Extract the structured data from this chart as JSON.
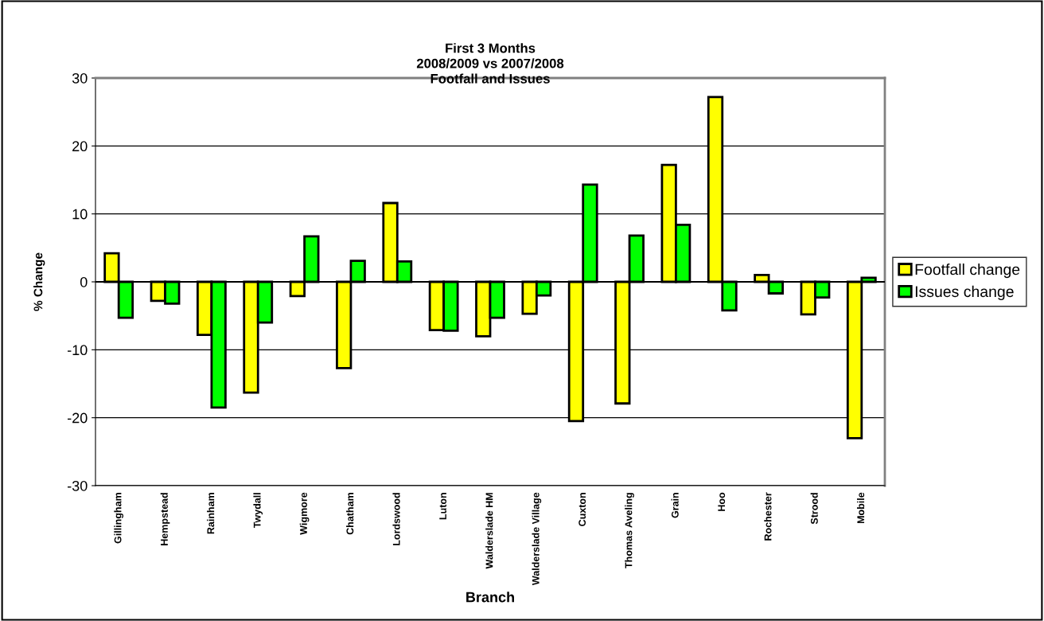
{
  "chart_data": {
    "type": "bar",
    "title": "First 3 Months\n2008/2009 vs 2007/2008\nFootfall and Issues",
    "xlabel": "Branch",
    "ylabel": "% Change",
    "categories": [
      "Gillingham",
      "Hempstead",
      "Rainham",
      "Twydall",
      "Wigmore",
      "Chatham",
      "Lordswood",
      "Luton",
      "Walderslade HM",
      "Walderslade Village",
      "Cuxton",
      "Thomas Aveling",
      "Grain",
      "Hoo",
      "Rochester",
      "Strood",
      "Mobile"
    ],
    "series": [
      {
        "name": "Footfall change",
        "color": "#ffff00",
        "values": [
          4.2,
          -2.8,
          -7.8,
          -16.3,
          -2.1,
          -12.7,
          11.6,
          -7.1,
          -8.0,
          -4.7,
          -20.5,
          -17.9,
          17.2,
          27.2,
          1.0,
          -4.8,
          -23.0
        ]
      },
      {
        "name": "Issues change",
        "color": "#00ff00",
        "values": [
          -5.3,
          -3.2,
          -18.5,
          -6.0,
          6.7,
          3.1,
          3.0,
          -7.2,
          -5.3,
          -2.0,
          14.3,
          6.8,
          8.4,
          -4.2,
          -1.7,
          -2.3,
          0.6
        ]
      }
    ],
    "ylim": [
      -30,
      30
    ],
    "yticks": [
      -30,
      -20,
      -10,
      0,
      10,
      20,
      30
    ],
    "grid": "y",
    "legend": "right"
  }
}
